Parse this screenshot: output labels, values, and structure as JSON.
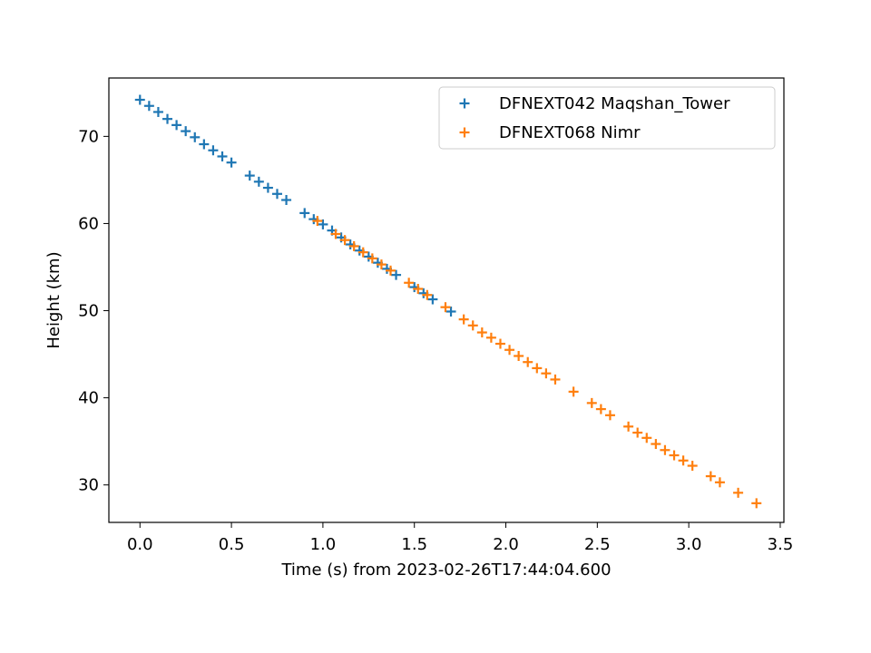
{
  "chart_data": {
    "type": "scatter",
    "xlabel": "Time (s) from 2023-02-26T17:44:04.600",
    "ylabel": "Height (km)",
    "xlim": [
      -0.17,
      3.52
    ],
    "ylim": [
      25.7,
      76.7
    ],
    "x_ticks": [
      0.0,
      0.5,
      1.0,
      1.5,
      2.0,
      2.5,
      3.0,
      3.5
    ],
    "x_tick_labels": [
      "0.0",
      "0.5",
      "1.0",
      "1.5",
      "2.0",
      "2.5",
      "3.0",
      "3.5"
    ],
    "y_ticks": [
      30,
      40,
      50,
      60,
      70
    ],
    "y_tick_labels": [
      "30",
      "40",
      "50",
      "60",
      "70"
    ],
    "grid": false,
    "legend_position": "top-right",
    "marker": "plus",
    "series": [
      {
        "name": "DFNEXT042 Maqshan_Tower",
        "color": "#1f77b4",
        "x": [
          0.0,
          0.05,
          0.1,
          0.15,
          0.2,
          0.25,
          0.3,
          0.35,
          0.4,
          0.45,
          0.5,
          0.6,
          0.65,
          0.7,
          0.75,
          0.8,
          0.9,
          0.95,
          1.0,
          1.05,
          1.1,
          1.15,
          1.2,
          1.25,
          1.3,
          1.35,
          1.4,
          1.5,
          1.55,
          1.6,
          1.7
        ],
        "y": [
          74.2,
          73.5,
          72.8,
          72.0,
          71.3,
          70.6,
          69.9,
          69.1,
          68.4,
          67.7,
          67.0,
          65.5,
          64.8,
          64.1,
          63.4,
          62.7,
          61.2,
          60.5,
          59.9,
          59.2,
          58.4,
          57.6,
          56.9,
          56.2,
          55.5,
          54.8,
          54.1,
          52.7,
          52.0,
          51.3,
          49.9
        ]
      },
      {
        "name": "DFNEXT068 Nimr",
        "color": "#ff7f0e",
        "x": [
          0.97,
          1.07,
          1.12,
          1.17,
          1.22,
          1.27,
          1.32,
          1.37,
          1.47,
          1.52,
          1.57,
          1.67,
          1.77,
          1.82,
          1.87,
          1.92,
          1.97,
          2.02,
          2.07,
          2.12,
          2.17,
          2.22,
          2.27,
          2.37,
          2.47,
          2.52,
          2.57,
          2.67,
          2.72,
          2.77,
          2.82,
          2.87,
          2.92,
          2.97,
          3.02,
          3.12,
          3.17,
          3.27,
          3.37
        ],
        "y": [
          60.3,
          58.8,
          58.1,
          57.4,
          56.7,
          56.0,
          55.3,
          54.6,
          53.2,
          52.5,
          51.8,
          50.4,
          49.0,
          48.3,
          47.5,
          46.9,
          46.2,
          45.5,
          44.8,
          44.1,
          43.4,
          42.8,
          42.1,
          40.7,
          39.4,
          38.7,
          38.0,
          36.7,
          36.0,
          35.4,
          34.7,
          34.0,
          33.4,
          32.8,
          32.2,
          31.0,
          30.3,
          29.1,
          27.9
        ]
      }
    ]
  }
}
